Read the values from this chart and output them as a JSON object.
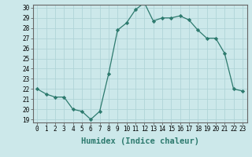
{
  "title": "",
  "xlabel": "Humidex (Indice chaleur)",
  "x": [
    0,
    1,
    2,
    3,
    4,
    5,
    6,
    7,
    8,
    9,
    10,
    11,
    12,
    13,
    14,
    15,
    16,
    17,
    18,
    19,
    20,
    21,
    22,
    23
  ],
  "y": [
    22,
    21.5,
    21.2,
    21.2,
    20,
    19.8,
    19,
    19.8,
    23.5,
    27.8,
    28.5,
    29.8,
    30.5,
    28.7,
    29,
    29,
    29.2,
    28.8,
    27.8,
    27,
    27,
    25.5,
    22,
    21.8
  ],
  "line_color": "#2d7a6e",
  "marker": "D",
  "marker_size": 2.2,
  "bg_color": "#cce8ea",
  "grid_color": "#b0d4d8",
  "ylim": [
    19,
    30
  ],
  "yticks": [
    19,
    20,
    21,
    22,
    23,
    24,
    25,
    26,
    27,
    28,
    29,
    30
  ],
  "xticks": [
    0,
    1,
    2,
    3,
    4,
    5,
    6,
    7,
    8,
    9,
    10,
    11,
    12,
    13,
    14,
    15,
    16,
    17,
    18,
    19,
    20,
    21,
    22,
    23
  ],
  "tick_label_fontsize": 5.5,
  "xlabel_fontsize": 7.5,
  "xlabel_color": "#2d7a6e",
  "spine_color": "#666666"
}
